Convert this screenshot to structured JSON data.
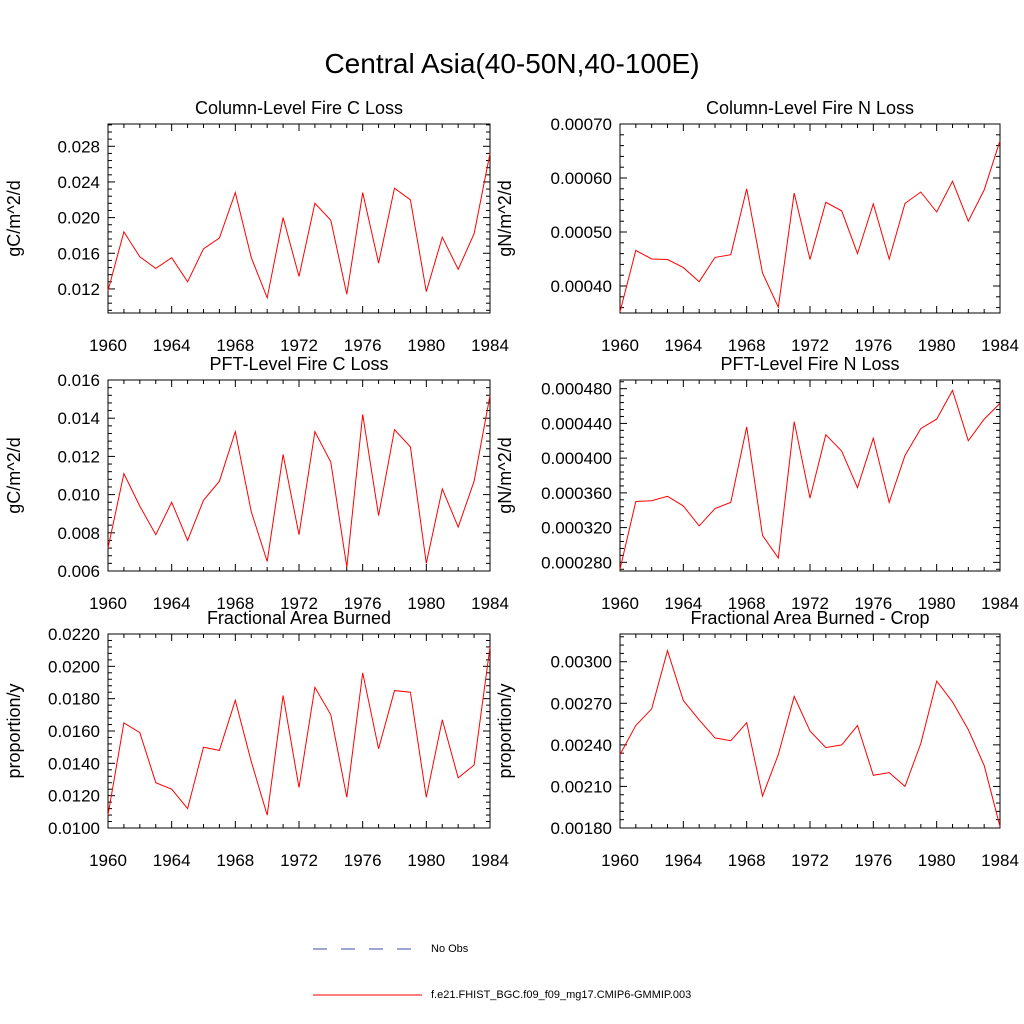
{
  "title": "Central Asia(40-50N,40-100E)",
  "line_color": "#ff0000",
  "obs_color": "#3b4ba8",
  "legend": {
    "obs_label": "No Obs",
    "model_label": "f.e21.FHIST_BGC.f09_f09_mg17.CMIP6-GMMIP.003"
  },
  "chart_data": [
    {
      "type": "line",
      "title": "Column-Level Fire C Loss",
      "ylabel": "gC/m^2/d",
      "xlim": [
        1960,
        1984
      ],
      "ylim": [
        0.0093,
        0.0305
      ],
      "yticks": [
        "0.012",
        "0.016",
        "0.020",
        "0.024",
        "0.028"
      ],
      "xticks": [
        "1960",
        "1964",
        "1968",
        "1972",
        "1976",
        "1980",
        "1984"
      ],
      "series": [
        {
          "x": [
            1960,
            1961,
            1962,
            1963,
            1964,
            1965,
            1966,
            1967,
            1968,
            1969,
            1970,
            1971,
            1972,
            1973,
            1974,
            1975,
            1976,
            1977,
            1978,
            1979,
            1980,
            1981,
            1982,
            1983,
            1984
          ],
          "y": [
            0.0118,
            0.0184,
            0.0156,
            0.0143,
            0.0155,
            0.0128,
            0.0165,
            0.0177,
            0.0228,
            0.0155,
            0.011,
            0.02,
            0.0134,
            0.0216,
            0.0197,
            0.0114,
            0.0228,
            0.0149,
            0.0233,
            0.022,
            0.0117,
            0.0178,
            0.0142,
            0.0182,
            0.0272
          ]
        }
      ]
    },
    {
      "type": "line",
      "title": "Column-Level Fire N Loss",
      "ylabel": "gN/m^2/d",
      "xlim": [
        1960,
        1984
      ],
      "ylim": [
        0.00035,
        0.0007
      ],
      "yticks": [
        "0.00040",
        "0.00050",
        "0.00060",
        "0.00070"
      ],
      "xticks": [
        "1960",
        "1964",
        "1968",
        "1972",
        "1976",
        "1980",
        "1984"
      ],
      "series": [
        {
          "x": [
            1960,
            1961,
            1962,
            1963,
            1964,
            1965,
            1966,
            1967,
            1968,
            1969,
            1970,
            1971,
            1972,
            1973,
            1974,
            1975,
            1976,
            1977,
            1978,
            1979,
            1980,
            1981,
            1982,
            1983,
            1984
          ],
          "y": [
            0.000352,
            0.000466,
            0.00045,
            0.000449,
            0.000434,
            0.000408,
            0.000453,
            0.000458,
            0.00058,
            0.000424,
            0.000361,
            0.000572,
            0.000449,
            0.000555,
            0.000539,
            0.00046,
            0.000552,
            0.00045,
            0.000553,
            0.000574,
            0.000537,
            0.000594,
            0.00052,
            0.000578,
            0.000669
          ]
        }
      ]
    },
    {
      "type": "line",
      "title": "PFT-Level Fire C Loss",
      "ylabel": "gC/m^2/d",
      "xlim": [
        1960,
        1984
      ],
      "ylim": [
        0.006,
        0.016
      ],
      "yticks": [
        "0.006",
        "0.008",
        "0.010",
        "0.012",
        "0.014",
        "0.016"
      ],
      "xticks": [
        "1960",
        "1964",
        "1968",
        "1972",
        "1976",
        "1980",
        "1984"
      ],
      "series": [
        {
          "x": [
            1960,
            1961,
            1962,
            1963,
            1964,
            1965,
            1966,
            1967,
            1968,
            1969,
            1970,
            1971,
            1972,
            1973,
            1974,
            1975,
            1976,
            1977,
            1978,
            1979,
            1980,
            1981,
            1982,
            1983,
            1984
          ],
          "y": [
            0.0072,
            0.0111,
            0.0094,
            0.0079,
            0.0096,
            0.0076,
            0.0097,
            0.0107,
            0.0133,
            0.0091,
            0.0065,
            0.0121,
            0.0079,
            0.0133,
            0.0117,
            0.0062,
            0.0142,
            0.0089,
            0.0134,
            0.0125,
            0.0064,
            0.0103,
            0.0083,
            0.0107,
            0.0152
          ]
        }
      ]
    },
    {
      "type": "line",
      "title": "PFT-Level Fire N Loss",
      "ylabel": "gN/m^2/d",
      "xlim": [
        1960,
        1984
      ],
      "ylim": [
        0.00027,
        0.00049
      ],
      "yticks": [
        "0.000280",
        "0.000320",
        "0.000360",
        "0.000400",
        "0.000440",
        "0.000480"
      ],
      "xticks": [
        "1960",
        "1964",
        "1968",
        "1972",
        "1976",
        "1980",
        "1984"
      ],
      "series": [
        {
          "x": [
            1960,
            1961,
            1962,
            1963,
            1964,
            1965,
            1966,
            1967,
            1968,
            1969,
            1970,
            1971,
            1972,
            1973,
            1974,
            1975,
            1976,
            1977,
            1978,
            1979,
            1980,
            1981,
            1982,
            1983,
            1984
          ],
          "y": [
            0.000272,
            0.00035,
            0.000351,
            0.000356,
            0.000345,
            0.000322,
            0.000342,
            0.000349,
            0.000436,
            0.000311,
            0.000285,
            0.000442,
            0.000354,
            0.000427,
            0.000408,
            0.000366,
            0.000423,
            0.000349,
            0.000403,
            0.000434,
            0.000445,
            0.000478,
            0.00042,
            0.000445,
            0.000463
          ]
        }
      ]
    },
    {
      "type": "line",
      "title": "Fractional Area Burned",
      "ylabel": "proportion/y",
      "xlim": [
        1960,
        1984
      ],
      "ylim": [
        0.01,
        0.022
      ],
      "yticks": [
        "0.0100",
        "0.0120",
        "0.0140",
        "0.0160",
        "0.0180",
        "0.0200",
        "0.0220"
      ],
      "xticks": [
        "1960",
        "1964",
        "1968",
        "1972",
        "1976",
        "1980",
        "1984"
      ],
      "series": [
        {
          "x": [
            1960,
            1961,
            1962,
            1963,
            1964,
            1965,
            1966,
            1967,
            1968,
            1969,
            1970,
            1971,
            1972,
            1973,
            1974,
            1975,
            1976,
            1977,
            1978,
            1979,
            1980,
            1981,
            1982,
            1983,
            1984
          ],
          "y": [
            0.0108,
            0.0165,
            0.0159,
            0.0128,
            0.0124,
            0.0112,
            0.015,
            0.0148,
            0.0179,
            0.0141,
            0.0108,
            0.0182,
            0.0125,
            0.0187,
            0.017,
            0.0119,
            0.0196,
            0.0149,
            0.0185,
            0.0184,
            0.0119,
            0.0167,
            0.0131,
            0.0139,
            0.0212
          ]
        }
      ]
    },
    {
      "type": "line",
      "title": "Fractional Area Burned - Crop",
      "ylabel": "proportion/y",
      "xlim": [
        1960,
        1984
      ],
      "ylim": [
        0.0018,
        0.0032
      ],
      "yticks": [
        "0.00180",
        "0.00210",
        "0.00240",
        "0.00270",
        "0.00300"
      ],
      "xticks": [
        "1960",
        "1964",
        "1968",
        "1972",
        "1976",
        "1980",
        "1984"
      ],
      "series": [
        {
          "x": [
            1960,
            1961,
            1962,
            1963,
            1964,
            1965,
            1966,
            1967,
            1968,
            1969,
            1970,
            1971,
            1972,
            1973,
            1974,
            1975,
            1976,
            1977,
            1978,
            1979,
            1980,
            1981,
            1982,
            1983,
            1984
          ],
          "y": [
            0.00233,
            0.00254,
            0.00266,
            0.00308,
            0.00272,
            0.00258,
            0.00245,
            0.00243,
            0.00256,
            0.00203,
            0.00233,
            0.00275,
            0.0025,
            0.00238,
            0.0024,
            0.00254,
            0.00218,
            0.0022,
            0.0021,
            0.00241,
            0.00286,
            0.00271,
            0.00251,
            0.00225,
            0.00181
          ]
        }
      ]
    }
  ]
}
